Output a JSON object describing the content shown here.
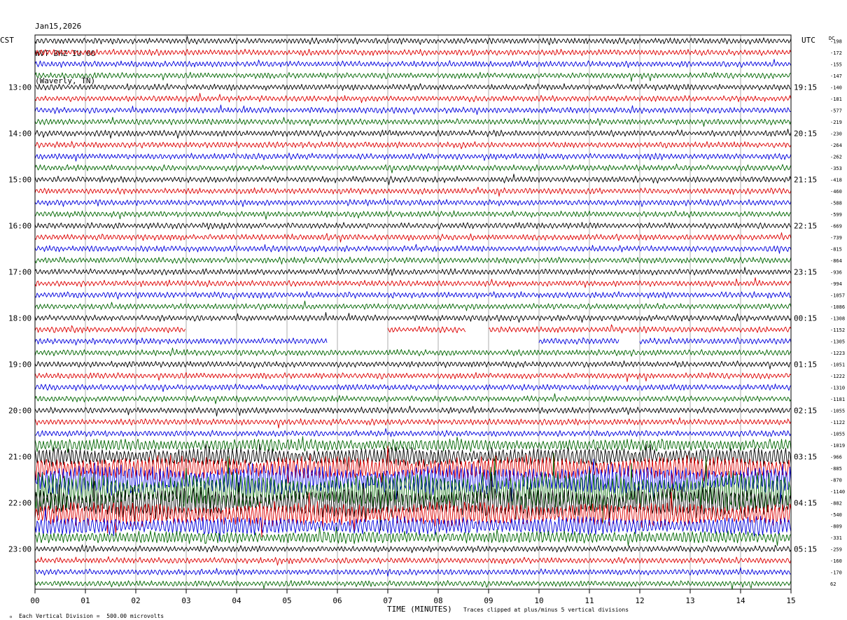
{
  "header": {
    "date": "Jan15,2026",
    "station": "WVT BHZ IU 00",
    "location": "(Waverly, TN)"
  },
  "axes": {
    "left_zone": "CST",
    "right_zone": "UTC",
    "dc_label": "DC",
    "xlabel": "TIME (MINUTES)"
  },
  "footer": {
    "scale_note": "Each Vertical Division =  500.00 microvolts",
    "clip_note": "Traces clipped at plus/minus 5 vertical divisions"
  },
  "chart_data": {
    "type": "line",
    "title": "",
    "x_ticks": [
      "00",
      "01",
      "02",
      "03",
      "04",
      "05",
      "06",
      "07",
      "08",
      "09",
      "10",
      "11",
      "12",
      "13",
      "14",
      "15"
    ],
    "xlim": [
      0,
      15
    ],
    "trace_count": 48,
    "traces_per_hour": 4,
    "trace_colors": [
      "#000000",
      "#dd0000",
      "#0000dd",
      "#006600"
    ],
    "grid_vertical": true,
    "cst_hour_labels": [
      {
        "trace": 4,
        "label": "13:00"
      },
      {
        "trace": 8,
        "label": "14:00"
      },
      {
        "trace": 12,
        "label": "15:00"
      },
      {
        "trace": 16,
        "label": "16:00"
      },
      {
        "trace": 20,
        "label": "17:00"
      },
      {
        "trace": 24,
        "label": "18:00"
      },
      {
        "trace": 28,
        "label": "19:00"
      },
      {
        "trace": 32,
        "label": "20:00"
      },
      {
        "trace": 36,
        "label": "21:00"
      },
      {
        "trace": 40,
        "label": "22:00"
      },
      {
        "trace": 44,
        "label": "23:00"
      }
    ],
    "utc_hour_labels": [
      {
        "trace": 4,
        "label": "19:15"
      },
      {
        "trace": 8,
        "label": "20:15"
      },
      {
        "trace": 12,
        "label": "21:15"
      },
      {
        "trace": 16,
        "label": "22:15"
      },
      {
        "trace": 20,
        "label": "23:15"
      },
      {
        "trace": 24,
        "label": "00:15"
      },
      {
        "trace": 28,
        "label": "01:15"
      },
      {
        "trace": 32,
        "label": "02:15"
      },
      {
        "trace": 36,
        "label": "03:15"
      },
      {
        "trace": 40,
        "label": "04:15"
      },
      {
        "trace": 44,
        "label": "05:15"
      }
    ],
    "dc_offsets": [
      -198,
      -172,
      -155,
      -147,
      -140,
      -181,
      -577,
      -219,
      -230,
      -264,
      -262,
      -353,
      -418,
      -460,
      -588,
      -599,
      -669,
      -739,
      -815,
      -864,
      -936,
      -994,
      -1057,
      -1086,
      -1308,
      -1152,
      -1305,
      -1223,
      -1051,
      -1222,
      -1310,
      -1181,
      -1055,
      -1122,
      -1055,
      -1019,
      -966,
      -885,
      -870,
      -1140,
      -882,
      -540,
      -809,
      -331,
      -259,
      -160,
      -170,
      62
    ],
    "gaps": [
      {
        "trace": 25,
        "start_min": 3.0,
        "end_min": 7.0
      },
      {
        "trace": 25,
        "start_min": 8.55,
        "end_min": 9.0
      },
      {
        "trace": 26,
        "start_min": 5.8,
        "end_min": 10.0
      },
      {
        "trace": 26,
        "start_min": 11.6,
        "end_min": 12.0
      }
    ],
    "activity": [
      {
        "from_trace": 35,
        "to_trace": 43,
        "start_min": 0.0,
        "end_min": 15.0,
        "level": "high"
      }
    ]
  }
}
